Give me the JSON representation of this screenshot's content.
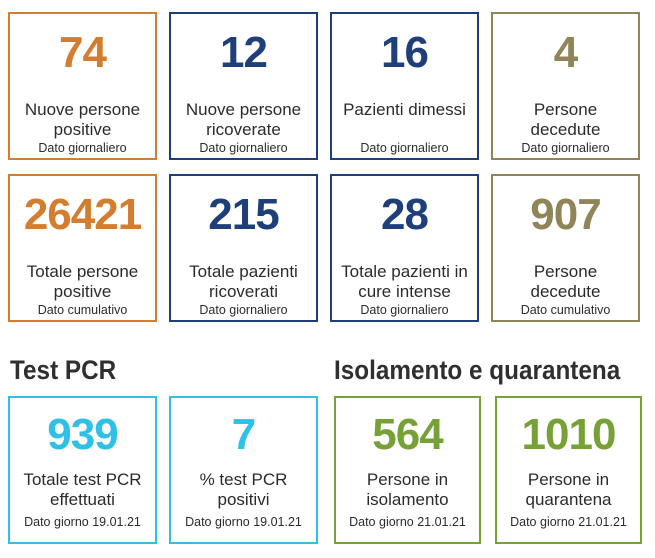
{
  "colors": {
    "orange": "#d47d2e",
    "blue": "#1e3f7a",
    "olive": "#8f8558",
    "cyan": "#2ec0e6",
    "green": "#75a136"
  },
  "daily": [
    {
      "value": "74",
      "label": "Nuove persone positive",
      "sub": "Dato giornaliero"
    },
    {
      "value": "12",
      "label": "Nuove persone ricoverate",
      "sub": "Dato giornaliero"
    },
    {
      "value": "16",
      "label": "Pazienti dimessi",
      "sub": "Dato giornaliero"
    },
    {
      "value": "4",
      "label": "Persone decedute",
      "sub": "Dato giornaliero"
    }
  ],
  "totals": [
    {
      "value": "26421",
      "label": "Totale persone positive",
      "sub": "Dato cumulativo"
    },
    {
      "value": "215",
      "label": "Totale pazienti ricoverati",
      "sub": "Dato giornaliero"
    },
    {
      "value": "28",
      "label": "Totale pazienti in cure intense",
      "sub": "Dato giornaliero"
    },
    {
      "value": "907",
      "label": "Persone decedute",
      "sub": "Dato cumulativo"
    }
  ],
  "pcr": {
    "title": "Test PCR",
    "cards": [
      {
        "value": "939",
        "label": "Totale test PCR effettuati",
        "sub": "Dato giorno 19.01.21"
      },
      {
        "value": "7",
        "label": "% test PCR positivi",
        "sub": "Dato giorno 19.01.21"
      }
    ]
  },
  "isolation": {
    "title": "Isolamento e quarantena",
    "cards": [
      {
        "value": "564",
        "label": "Persone in isolamento",
        "sub": "Dato giorno 21.01.21"
      },
      {
        "value": "1010",
        "label": "Persone in quarantena",
        "sub": "Dato giorno 21.01.21"
      }
    ]
  }
}
